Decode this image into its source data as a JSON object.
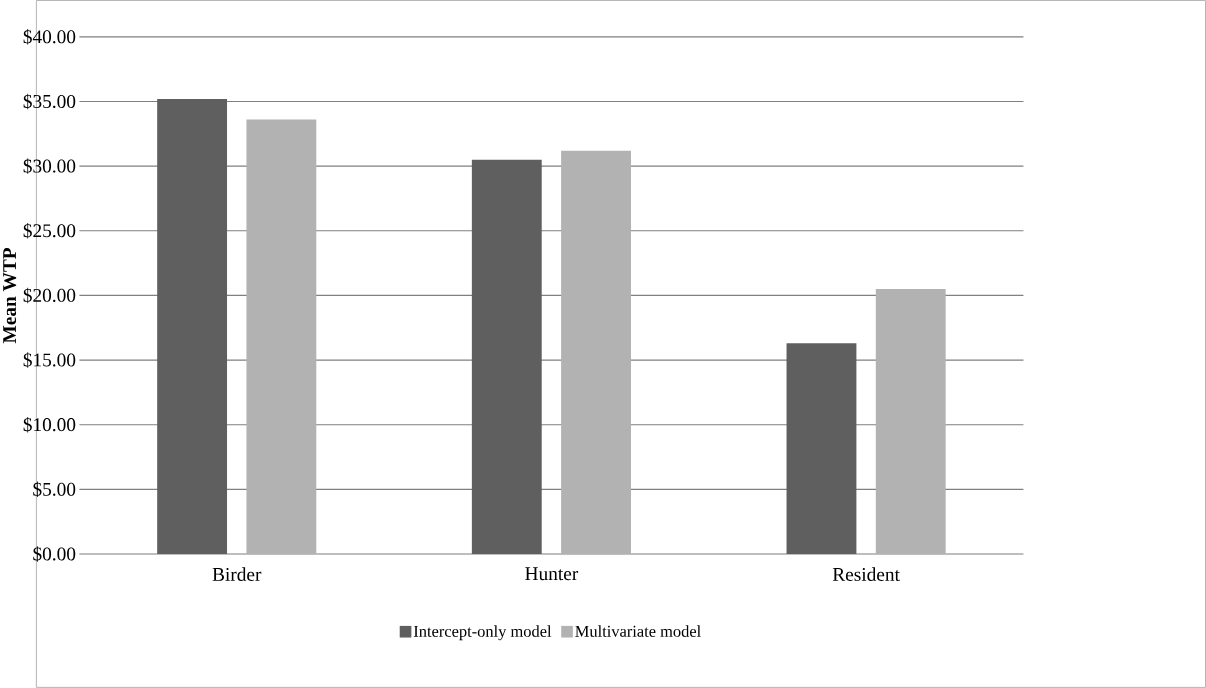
{
  "chart_data": {
    "type": "bar",
    "ylabel": "**Mean WTP**",
    "categories": [
      "Birder",
      "Hunter",
      "Resident"
    ],
    "series": [
      {
        "name": "Intercept-only model",
        "color": "#5f5f5f",
        "values": [
          35.2,
          30.5,
          16.3
        ]
      },
      {
        "name": "Multivariate model",
        "color": "#b2b2b2",
        "values": [
          33.6,
          31.2,
          20.5
        ]
      }
    ],
    "ylim": [
      0,
      40
    ],
    "yticks": [
      {
        "value": 0,
        "label": "$0.00"
      },
      {
        "value": 5,
        "label": "$5.00"
      },
      {
        "value": 10,
        "label": "$10.00"
      },
      {
        "value": 15,
        "label": "$15.00"
      },
      {
        "value": 20,
        "label": "$20.00"
      },
      {
        "value": 25,
        "label": "$25.00"
      },
      {
        "value": 30,
        "label": "$30.00"
      },
      {
        "value": 35,
        "label": "$35.00"
      },
      {
        "value": 40,
        "label": "$40.00"
      }
    ],
    "grid": "y",
    "legend": "bottom"
  }
}
